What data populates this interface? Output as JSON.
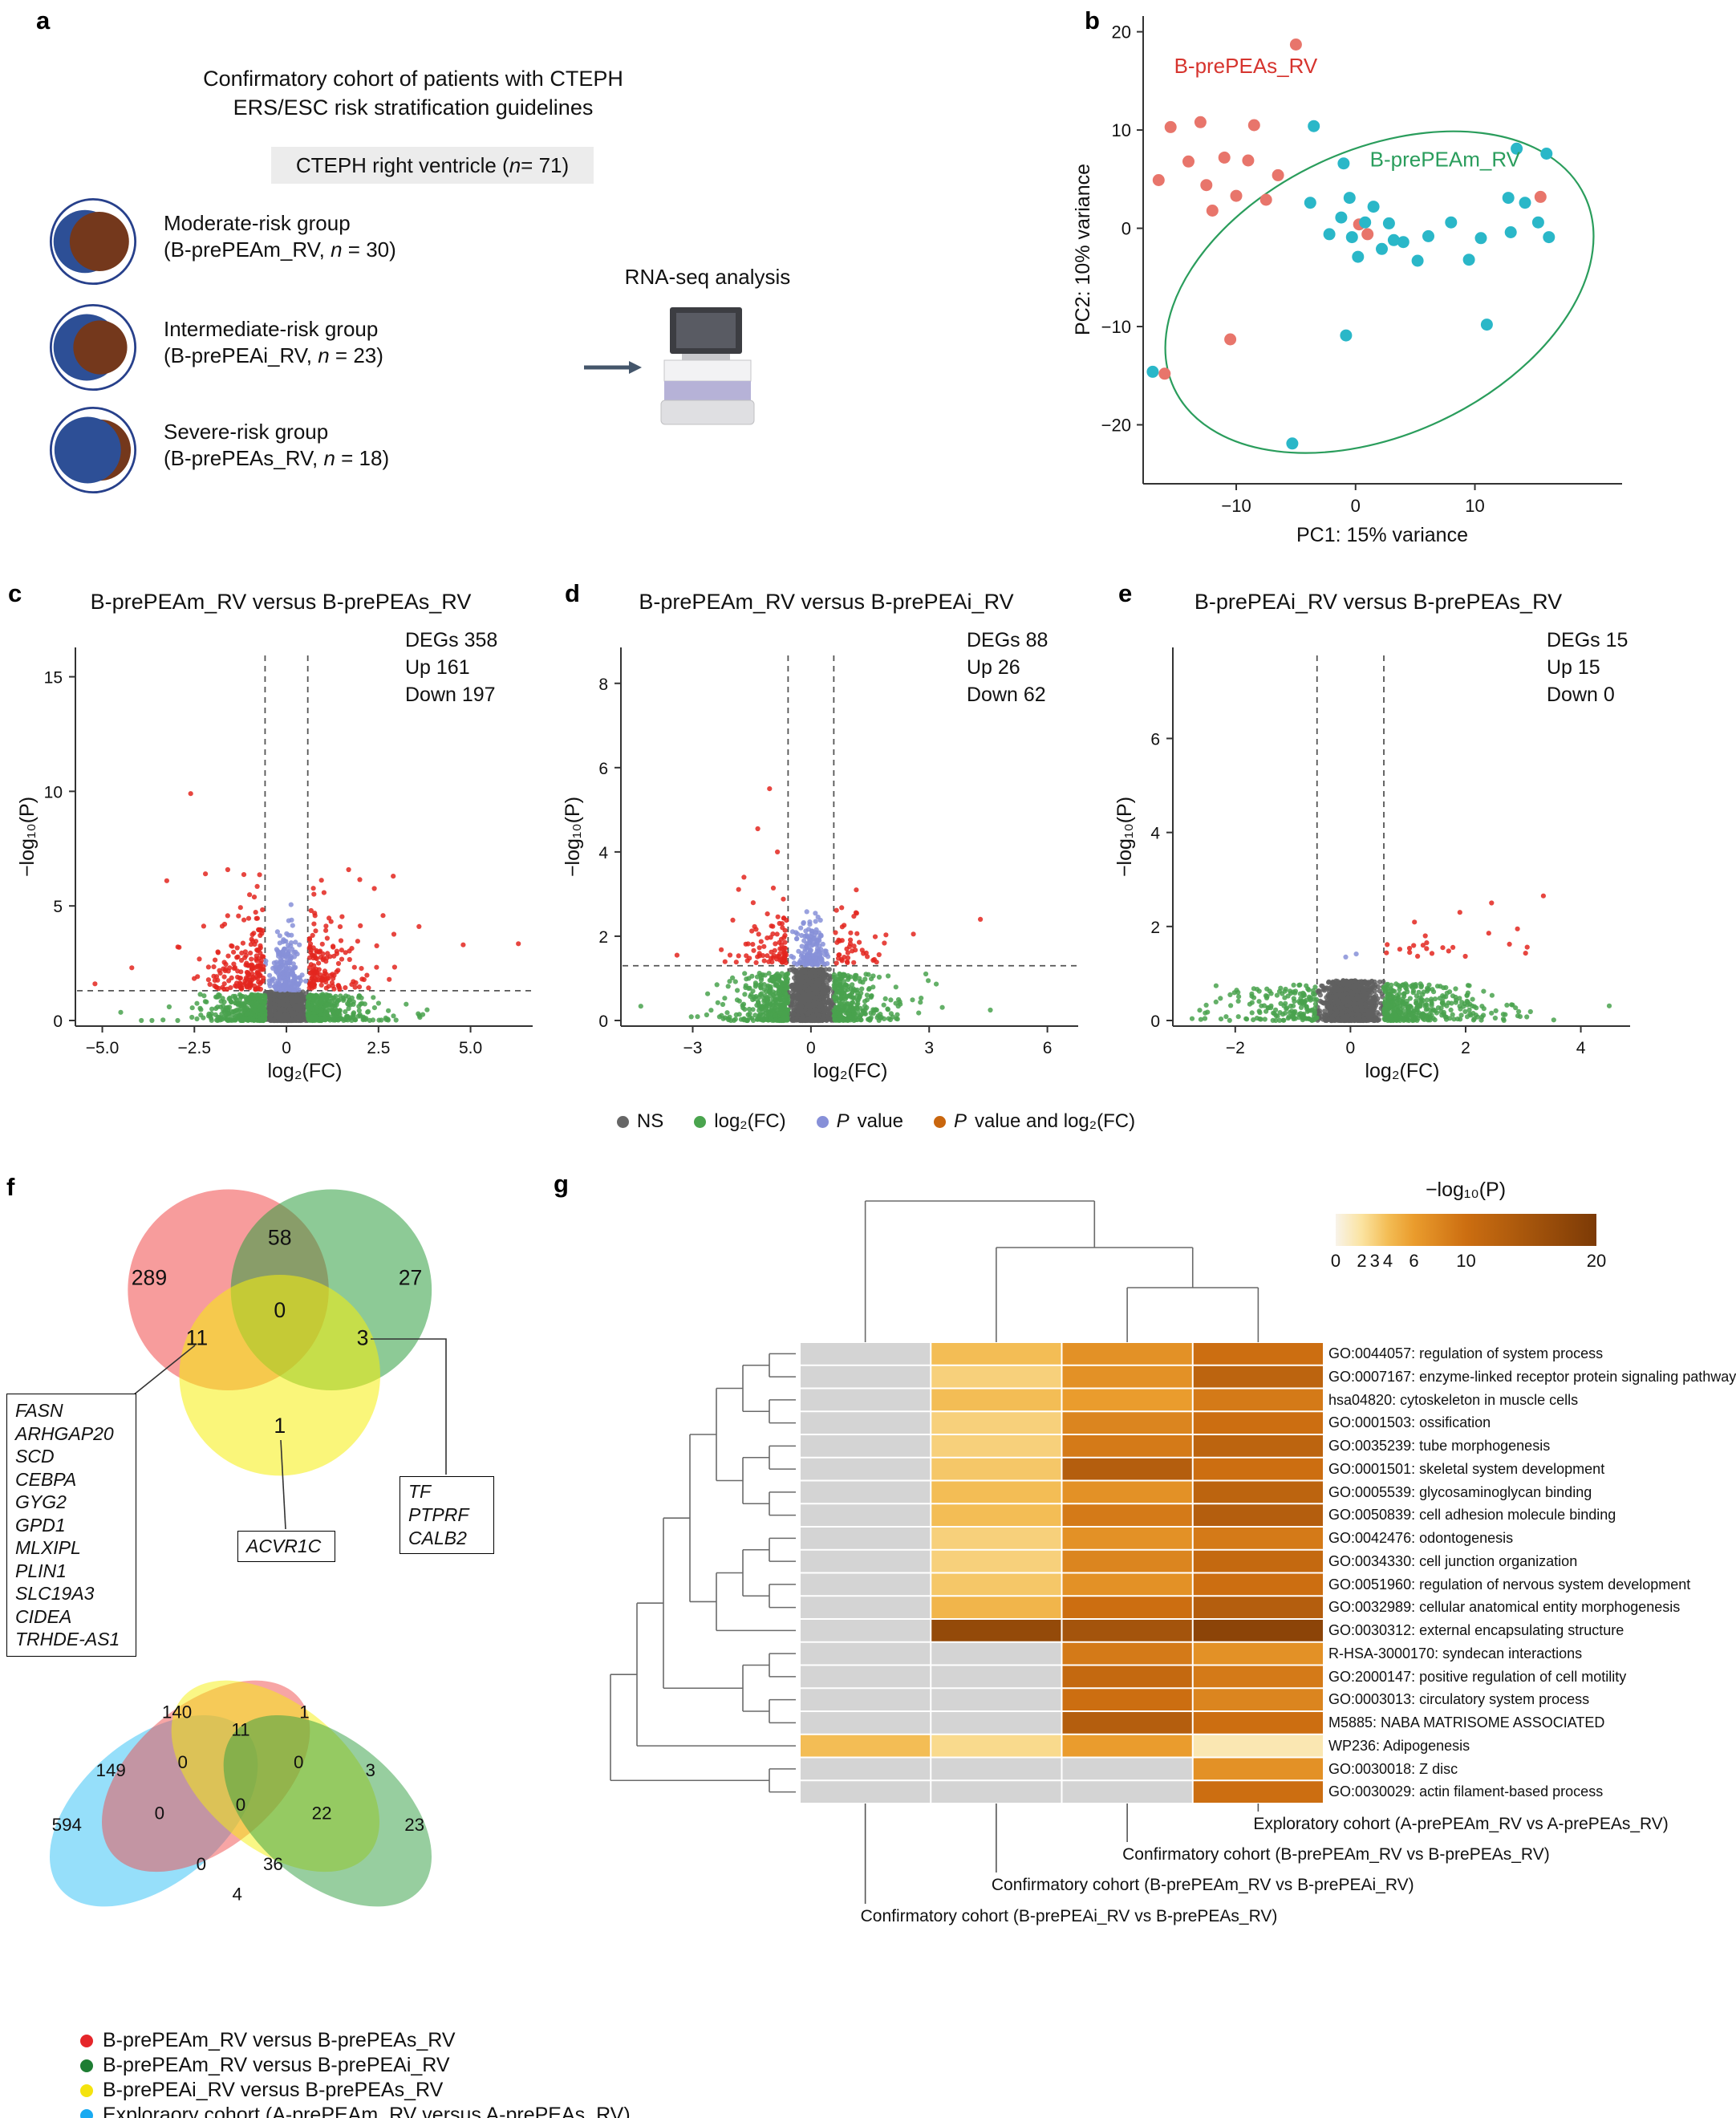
{
  "panel_letters": {
    "a": "a",
    "b": "b",
    "c": "c",
    "d": "d",
    "e": "e",
    "f": "f",
    "g": "g"
  },
  "panel_a": {
    "header": [
      "Confirmatory cohort of patients with CTEPH",
      "ERS/ESC risk stratification guidelines"
    ],
    "cohort_box": {
      "pre": "CTEPH right ventricle (",
      "n": "n",
      "post": " = 71)"
    },
    "groups": [
      {
        "title": "Moderate-risk group",
        "sub_pre": "(B-prePEAm_RV, ",
        "n": "n",
        "sub_post": " = 30)"
      },
      {
        "title": "Intermediate-risk group",
        "sub_pre": "(B-prePEAi_RV, ",
        "n": "n",
        "sub_post": " = 23)"
      },
      {
        "title": "Severe-risk group",
        "sub_pre": "(B-prePEAs_RV, ",
        "n": "n",
        "sub_post": " = 18)"
      }
    ],
    "rnaseq_label": "RNA-seq analysis"
  },
  "volcano_legend": {
    "items": [
      {
        "color": "#666666",
        "it": "",
        "text": "NS"
      },
      {
        "color": "#4aa44e",
        "it": "",
        "text": "log₂(FC)"
      },
      {
        "color": "#8790d8",
        "it": "P",
        "text": " value"
      },
      {
        "color": "#c9660e",
        "it": "P",
        "text": " value and log₂(FC)"
      }
    ]
  },
  "chart_data": [
    {
      "id": "pca",
      "type": "scatter",
      "xlabel": "PC1: 15% variance",
      "ylabel": "PC2: 10% variance",
      "xlim": [
        -17.8,
        22.2
      ],
      "ylim": [
        -26,
        21.6
      ],
      "xticks": [
        -10,
        0,
        10
      ],
      "yticks": [
        -20,
        -10,
        0,
        10,
        20
      ],
      "series": [
        {
          "name": "B-prePEAs_RV",
          "color": "#e8756b",
          "points": [
            [
              -5,
              18.7
            ],
            [
              -15.5,
              10.3
            ],
            [
              -13,
              10.8
            ],
            [
              -8.5,
              10.5
            ],
            [
              -11,
              7.2
            ],
            [
              -14,
              6.8
            ],
            [
              -16.5,
              4.9
            ],
            [
              -12.5,
              4.4
            ],
            [
              -10,
              3.3
            ],
            [
              -6.5,
              5.4
            ],
            [
              -12,
              1.8
            ],
            [
              -7.5,
              2.9
            ],
            [
              0.3,
              0.4
            ],
            [
              15.5,
              3.2
            ],
            [
              -10.5,
              -11.3
            ],
            [
              -16,
              -14.8
            ],
            [
              1,
              -0.6
            ],
            [
              -9,
              6.9
            ]
          ]
        },
        {
          "name": "B-prePEAm_RV",
          "color": "#2ab7c8",
          "points": [
            [
              -3.5,
              10.4
            ],
            [
              -1,
              6.6
            ],
            [
              -0.5,
              3.1
            ],
            [
              -3.8,
              2.6
            ],
            [
              -1.2,
              1.1
            ],
            [
              0.8,
              0.6
            ],
            [
              2.8,
              0.5
            ],
            [
              -0.3,
              -0.9
            ],
            [
              0.2,
              -2.9
            ],
            [
              2.2,
              -2.1
            ],
            [
              4,
              -1.4
            ],
            [
              5.2,
              -3.3
            ],
            [
              6.1,
              -0.8
            ],
            [
              8,
              0.6
            ],
            [
              13.5,
              8.1
            ],
            [
              16,
              7.6
            ],
            [
              12.8,
              3.1
            ],
            [
              14.2,
              2.6
            ],
            [
              15.3,
              0.6
            ],
            [
              13,
              -0.4
            ],
            [
              16.2,
              -0.9
            ],
            [
              11,
              -9.8
            ],
            [
              -0.8,
              -10.9
            ],
            [
              -5.3,
              -21.9
            ],
            [
              -17,
              -14.6
            ],
            [
              9.5,
              -3.2
            ],
            [
              3.2,
              -1.2
            ],
            [
              -2.2,
              -0.6
            ],
            [
              1.5,
              2.2
            ],
            [
              10.5,
              -1
            ]
          ]
        }
      ],
      "annotations": [
        {
          "text": "B-prePEAs_RV",
          "x": -9.2,
          "y": 15.8,
          "color": "#d6342e"
        },
        {
          "text": "B-prePEAm_RV",
          "x": 7.5,
          "y": 6.3,
          "color": "#2a9d5c"
        }
      ],
      "ellipse": {
        "cx": 2,
        "cy": -6.5,
        "rx": 19,
        "ry": 14.5,
        "angle": -25,
        "color": "#2a9d5c"
      }
    },
    {
      "id": "volcano_c",
      "type": "scatter",
      "title": "B-prePEAm_RV versus B-prePEAs_RV",
      "stats": [
        "DEGs 358",
        "Up 161",
        "Down 197"
      ],
      "xlabel": "log₂(FC)",
      "ylabel": "−log₁₀(P)",
      "xlim": [
        -5.6,
        6.6
      ],
      "ylim": [
        0,
        16
      ],
      "xticks": [
        -5.0,
        -2.5,
        0,
        2.5,
        5.0
      ],
      "xtick_labels": [
        "−5.0",
        "−2.5",
        "0",
        "2.5",
        "5.0"
      ],
      "yticks": [
        0,
        5,
        10,
        15
      ],
      "vlines": [
        -0.58,
        0.58
      ],
      "hline": 1.3,
      "cloud": {
        "seed": 11,
        "ns": 1500,
        "base_ymax": 1.25,
        "fc": 750,
        "left_frac": 0.5,
        "fc_scale": 0.55,
        "p": 240,
        "p_scale": 0.85,
        "p_ymax": 5.4,
        "sig_up": 150,
        "sig_down": 180,
        "sig_xscale": 0.6,
        "sig_xmax": 3.5,
        "sig_yscale": 1.25,
        "sig_ymax": 6.6
      },
      "outliers": [
        [
          -2.6,
          9.9
        ],
        [
          2.9,
          6.3
        ],
        [
          -3.25,
          6.1
        ],
        [
          -2.2,
          6.4
        ],
        [
          4.8,
          3.3
        ],
        [
          6.3,
          3.35
        ],
        [
          -4.2,
          2.3
        ],
        [
          -5.2,
          1.6
        ],
        [
          3.6,
          4.1
        ]
      ]
    },
    {
      "id": "volcano_d",
      "type": "scatter",
      "title": "B-prePEAm_RV versus B-prePEAi_RV",
      "stats": [
        "DEGs 88",
        "Up 26",
        "Down 62"
      ],
      "xlabel": "log₂(FC)",
      "ylabel": "−log₁₀(P)",
      "xlim": [
        -4.7,
        6.7
      ],
      "ylim": [
        0,
        8.7
      ],
      "xticks": [
        -3,
        0,
        3,
        6
      ],
      "yticks": [
        0,
        2,
        4,
        6,
        8
      ],
      "vlines": [
        -0.58,
        0.58
      ],
      "hline": 1.3,
      "cloud": {
        "seed": 22,
        "ns": 1500,
        "base_ymax": 1.22,
        "fc": 700,
        "left_frac": 0.55,
        "fc_scale": 0.5,
        "p": 170,
        "p_scale": 0.38,
        "p_ymax": 2.6,
        "sig_up": 45,
        "sig_down": 85,
        "sig_xscale": 0.5,
        "sig_xmax": 2.7,
        "sig_yscale": 0.55,
        "sig_ymax": 3.2
      },
      "outliers": [
        [
          -1.05,
          5.5
        ],
        [
          -1.35,
          4.55
        ],
        [
          -0.85,
          4.0
        ],
        [
          -1.7,
          3.4
        ],
        [
          1.15,
          3.1
        ],
        [
          4.3,
          2.4
        ],
        [
          2.6,
          2.05
        ],
        [
          -3.4,
          1.55
        ]
      ]
    },
    {
      "id": "volcano_e",
      "type": "scatter",
      "title": "B-prePEAi_RV versus B-prePEAs_RV",
      "stats": [
        "DEGs 15",
        "Up 15",
        "Down 0"
      ],
      "xlabel": "log₂(FC)",
      "ylabel": "−log₁₀(P)",
      "xlim": [
        -3.0,
        4.8
      ],
      "ylim": [
        0,
        7.8
      ],
      "xticks": [
        -2,
        0,
        2,
        4
      ],
      "yticks": [
        0,
        2,
        4,
        6
      ],
      "vlines": [
        -0.58,
        0.58
      ],
      "hline": null,
      "cloud": {
        "seed": 33,
        "ns": 1300,
        "base_ymax": 0.85,
        "fc": 550,
        "left_frac": 0.3,
        "fc_scale": 0.6,
        "p": 2,
        "p_scale": 0.12,
        "p_ymax": 1.6,
        "sig_up": 20,
        "sig_down": 0,
        "sig_xscale": 0.8,
        "sig_xmax": 3.3,
        "sig_yscale": 0.5,
        "sig_ymax": 2.6
      },
      "outliers": [
        [
          3.35,
          2.65
        ],
        [
          2.45,
          2.5
        ],
        [
          1.9,
          2.3
        ],
        [
          2.9,
          1.95
        ],
        [
          1.3,
          1.8
        ]
      ]
    },
    {
      "id": "venn3",
      "type": "venn",
      "circles": [
        {
          "cx": 105,
          "cy": 88,
          "r": 80,
          "color": "#f04b4b"
        },
        {
          "cx": 187,
          "cy": 88,
          "r": 80,
          "color": "#2f9e3f"
        },
        {
          "cx": 146,
          "cy": 156,
          "r": 80,
          "color": "#f6ef0c"
        }
      ],
      "counts": [
        {
          "v": "289",
          "x": 42,
          "y": 84
        },
        {
          "v": "58",
          "x": 146,
          "y": 52
        },
        {
          "v": "27",
          "x": 250,
          "y": 84
        },
        {
          "v": "11",
          "x": 80,
          "y": 132
        },
        {
          "v": "0",
          "x": 146,
          "y": 110
        },
        {
          "v": "3",
          "x": 212,
          "y": 132
        },
        {
          "v": "1",
          "x": 146,
          "y": 202
        }
      ],
      "gene_list": [
        "FASN",
        "ARHGAP20",
        "SCD",
        "CEBPA",
        "GYG2",
        "GPD1",
        "MLXIPL",
        "PLIN1",
        "SLC19A3",
        "CIDEA",
        "TRHDE-AS1"
      ],
      "callout_boxes": [
        {
          "genes": [
            "ACVR1C"
          ]
        },
        {
          "genes": [
            "TF",
            "PTPRF",
            "CALB2"
          ]
        }
      ]
    },
    {
      "id": "venn4",
      "type": "venn",
      "ellipses": [
        {
          "cx": 105,
          "cy": 135,
          "rx": 105,
          "ry": 62,
          "rot": -40,
          "color": "#2ec0f5"
        },
        {
          "cx": 150,
          "cy": 105,
          "rx": 105,
          "ry": 62,
          "rot": -40,
          "color": "#f04b4b"
        },
        {
          "cx": 210,
          "cy": 105,
          "rx": 105,
          "ry": 62,
          "rot": 40,
          "color": "#f6ef0c"
        },
        {
          "cx": 255,
          "cy": 135,
          "rx": 105,
          "ry": 62,
          "rot": 40,
          "color": "#2f9e3f"
        }
      ],
      "counts": [
        {
          "v": "594",
          "x": 30,
          "y": 152
        },
        {
          "v": "140",
          "x": 125,
          "y": 55
        },
        {
          "v": "1",
          "x": 235,
          "y": 55
        },
        {
          "v": "23",
          "x": 330,
          "y": 152
        },
        {
          "v": "149",
          "x": 68,
          "y": 105
        },
        {
          "v": "11",
          "x": 180,
          "y": 70
        },
        {
          "v": "3",
          "x": 292,
          "y": 105
        },
        {
          "v": "0",
          "x": 130,
          "y": 98
        },
        {
          "v": "0",
          "x": 230,
          "y": 98
        },
        {
          "v": "0",
          "x": 110,
          "y": 142
        },
        {
          "v": "22",
          "x": 250,
          "y": 142
        },
        {
          "v": "0",
          "x": 180,
          "y": 135
        },
        {
          "v": "0",
          "x": 146,
          "y": 186
        },
        {
          "v": "36",
          "x": 208,
          "y": 186
        },
        {
          "v": "4",
          "x": 177,
          "y": 212
        }
      ],
      "legend": [
        {
          "color": "#e5262a",
          "text": "B-prePEAm_RV versus B-prePEAs_RV"
        },
        {
          "color": "#1e7d33",
          "text": "B-prePEAm_RV versus B-prePEAi_RV"
        },
        {
          "color": "#f4e30e",
          "text": "B-prePEAi_RV versus B-prePEAs_RV"
        },
        {
          "color": "#19aaf1",
          "text": "Exploraory cohort (A-prePEAm_RV versus A-prePEAs_RV)"
        }
      ]
    },
    {
      "id": "heatmap",
      "type": "heatmap",
      "legend_title": "−log₁₀(P)",
      "legend_ticks": [
        0,
        2,
        3,
        4,
        6,
        10,
        20
      ],
      "color_stops": [
        [
          0,
          "#f8f3e9"
        ],
        [
          2,
          "#fbe3a0"
        ],
        [
          4,
          "#f3bd55"
        ],
        [
          6,
          "#ea9c2d"
        ],
        [
          10,
          "#cc6e11"
        ],
        [
          20,
          "#7c3a06"
        ]
      ],
      "na_color": "#d4d4d4",
      "columns": [
        "Confirmatory cohort (B-prePEAi_RV vs B-prePEAs_RV)",
        "Confirmatory cohort (B-prePEAm_RV vs B-prePEAi_RV)",
        "Confirmatory cohort (B-prePEAm_RV vs B-prePEAs_RV)",
        "Exploratory cohort (A-prePEAm_RV vs A-prePEAs_RV)"
      ],
      "rows": [
        {
          "label": "GO:0044057: regulation of system process",
          "values": [
            null,
            4,
            7,
            10
          ]
        },
        {
          "label": "GO:0007167: enzyme-linked receptor protein signaling pathway",
          "values": [
            null,
            3,
            7,
            12
          ]
        },
        {
          "label": "hsa04820: cytoskeleton in muscle cells",
          "values": [
            null,
            4,
            6,
            9
          ]
        },
        {
          "label": "GO:0001503: ossification",
          "values": [
            null,
            3,
            8,
            10
          ]
        },
        {
          "label": "GO:0035239: tube morphogenesis",
          "values": [
            null,
            3,
            9,
            12
          ]
        },
        {
          "label": "GO:0001501: skeletal system development",
          "values": [
            null,
            3.5,
            13,
            10
          ]
        },
        {
          "label": "GO:0005539: glycosaminoglycan binding",
          "values": [
            null,
            4,
            7,
            12
          ]
        },
        {
          "label": "GO:0050839: cell adhesion molecule binding",
          "values": [
            null,
            4,
            9,
            13
          ]
        },
        {
          "label": "GO:0042476: odontogenesis",
          "values": [
            null,
            3,
            7,
            9
          ]
        },
        {
          "label": "GO:0034330: cell junction organization",
          "values": [
            null,
            3,
            8,
            11
          ]
        },
        {
          "label": "GO:0051960: regulation of nervous system development",
          "values": [
            null,
            3.5,
            7,
            10
          ]
        },
        {
          "label": "GO:0032989: cellular anatomical entity morphogenesis",
          "values": [
            null,
            4.5,
            10,
            13
          ]
        },
        {
          "label": "GO:0030312: external encapsulating structure",
          "values": [
            null,
            17,
            15,
            18
          ]
        },
        {
          "label": "R-HSA-3000170: syndecan interactions",
          "values": [
            null,
            null,
            9,
            7
          ]
        },
        {
          "label": "GO:2000147: positive regulation of cell motility",
          "values": [
            null,
            null,
            11,
            9
          ]
        },
        {
          "label": "GO:0003013: circulatory system process",
          "values": [
            null,
            null,
            10,
            8
          ]
        },
        {
          "label": "M5885: NABA MATRISOME ASSOCIATED",
          "values": [
            null,
            null,
            13,
            10
          ]
        },
        {
          "label": "WP236: Adipogenesis",
          "values": [
            4,
            2.5,
            6,
            1.5
          ]
        },
        {
          "label": "GO:0030018: Z disc",
          "values": [
            null,
            null,
            null,
            7
          ]
        },
        {
          "label": "GO:0030029: actin filament-based process",
          "values": [
            null,
            null,
            null,
            10
          ]
        }
      ]
    }
  ]
}
